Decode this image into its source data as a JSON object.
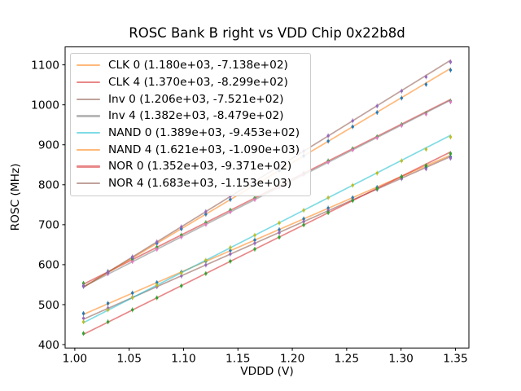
{
  "figure": {
    "title": "ROSC Bank B right vs VDD Chip 0x22b8d",
    "xlabel": "VDDD (V)",
    "ylabel": "ROSC (MHz)",
    "background_color": "#ffffff",
    "spine_color": "#000000",
    "legend_border_color": "#cccccc"
  },
  "chart_data": {
    "type": "scatter",
    "title": "ROSC Bank B right vs VDD Chip 0x22b8d",
    "xlabel": "VDDD (V)",
    "ylabel": "ROSC (MHz)",
    "xlim": [
      0.9911,
      1.3624
    ],
    "ylim": [
      391.5,
      1144.9
    ],
    "xticks": [
      1.0,
      1.05,
      1.1,
      1.15,
      1.2,
      1.25,
      1.3,
      1.35
    ],
    "xtick_labels": [
      "1.00",
      "1.05",
      "1.10",
      "1.15",
      "1.20",
      "1.25",
      "1.30",
      "1.35"
    ],
    "yticks": [
      400,
      500,
      600,
      700,
      800,
      900,
      1000,
      1100
    ],
    "ytick_labels": [
      "400",
      "500",
      "600",
      "700",
      "800",
      "900",
      "1000",
      "1100"
    ],
    "grid": false,
    "legend_position": "upper left",
    "yerr": 6,
    "x": [
      1.008,
      1.0305,
      1.053,
      1.0755,
      1.098,
      1.1205,
      1.143,
      1.1655,
      1.188,
      1.2105,
      1.233,
      1.2555,
      1.278,
      1.3005,
      1.323,
      1.3455
    ],
    "series": [
      {
        "name": "CLK 0",
        "legend_label": "CLK 0 (1.180e+03, -7.138e+02)",
        "slope": 1180.0,
        "intercept": -713.8,
        "line_color": "#ff7f0e",
        "marker_color": "#1f77b4",
        "y": [
          477.8,
          503.0,
          529.1,
          555.3,
          581.4,
          608.4,
          635.4,
          661.5,
          687.6,
          714.6,
          741.5,
          767.7,
          793.4,
          819.6,
          843.7,
          869.7
        ]
      },
      {
        "name": "CLK 4",
        "legend_label": "CLK 4 (1.370e+03, -8.299e+02)",
        "slope": 1370.0,
        "intercept": -829.9,
        "line_color": "#d62728",
        "marker_color": "#2ca02c",
        "y": [
          553.3,
          582.7,
          613.1,
          643.5,
          674.0,
          705.2,
          736.4,
          766.8,
          797.3,
          828.5,
          859.7,
          890.1,
          920.2,
          950.6,
          979.0,
          1009.2
        ]
      },
      {
        "name": "Inv 0",
        "legend_label": "Inv 0 (1.206e+03, -7.521e+02)",
        "slope": 1206.0,
        "intercept": -752.1,
        "line_color": "#8c564b",
        "marker_color": "#9467bd",
        "y": [
          465.7,
          491.5,
          518.2,
          544.9,
          571.7,
          599.2,
          626.7,
          653.5,
          680.2,
          707.8,
          735.3,
          762.0,
          788.4,
          815.1,
          839.8,
          866.4
        ]
      },
      {
        "name": "Inv 4",
        "legend_label": "Inv 4 (1.382e+03, -8.479e+02)",
        "slope": 1382.0,
        "intercept": -847.9,
        "line_color": "#7f7f7f",
        "marker_color": "#e377c2",
        "y": [
          547.4,
          577.1,
          607.7,
          638.4,
          669.1,
          700.6,
          732.1,
          762.8,
          793.5,
          825.0,
          856.5,
          887.2,
          917.5,
          948.2,
          976.9,
          1007.4
        ]
      },
      {
        "name": "NAND 0",
        "legend_label": "NAND 0 (1.389e+03, -9.453e+02)",
        "slope": 1389.0,
        "intercept": -945.3,
        "line_color": "#17becf",
        "marker_color": "#bcbd22",
        "y": [
          457.0,
          486.9,
          517.7,
          548.6,
          579.4,
          611.1,
          642.7,
          673.6,
          704.4,
          736.1,
          767.7,
          798.6,
          829.0,
          859.9,
          888.7,
          919.4
        ]
      },
      {
        "name": "NAND 4",
        "legend_label": "NAND 4 (1.621e+03, -1.090e+03)",
        "slope": 1621.0,
        "intercept": -1090.0,
        "line_color": "#ff7f0e",
        "marker_color": "#1f77b4",
        "y": [
          546.2,
          581.2,
          617.3,
          653.4,
          689.5,
          726.3,
          763.2,
          799.3,
          835.4,
          872.2,
          909.1,
          945.2,
          980.9,
          1016.9,
          1051.0,
          1086.9
        ]
      },
      {
        "name": "NOR 0",
        "legend_label": "NOR 0 (1.352e+03, -9.371e+02)",
        "slope": 1352.0,
        "intercept": -937.1,
        "line_color": "#d62728",
        "marker_color": "#2ca02c",
        "y": [
          427.9,
          456.9,
          487.0,
          517.0,
          547.0,
          577.8,
          608.6,
          638.7,
          668.7,
          699.5,
          730.3,
          760.3,
          790.0,
          820.0,
          848.0,
          877.8
        ]
      },
      {
        "name": "NOR 4",
        "legend_label": "NOR 4 (1.683e+03, -1.153e+03)",
        "slope": 1683.0,
        "intercept": -1153.0,
        "line_color": "#8c564b",
        "marker_color": "#9467bd",
        "y": [
          545.7,
          582.1,
          619.6,
          657.1,
          694.5,
          732.8,
          771.1,
          808.5,
          846.0,
          884.2,
          922.5,
          960.0,
          997.0,
          1034.4,
          1069.9,
          1107.2
        ]
      }
    ]
  }
}
